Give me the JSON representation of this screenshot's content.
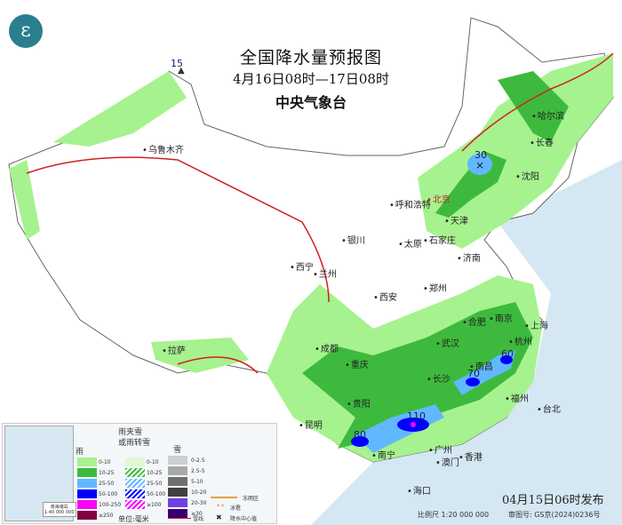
{
  "header": {
    "title": "全国降水量预报图",
    "period": "4月16日08时—17日08时",
    "issuer": "中央气象台"
  },
  "logo": {
    "icon": "cma-logo"
  },
  "cities": [
    "乌鲁木齐",
    "哈尔滨",
    "长春",
    "沈阳",
    "北京",
    "天津",
    "呼和浩特",
    "石家庄",
    "太原",
    "济南",
    "银川",
    "兰州",
    "西宁",
    "郑州",
    "西安",
    "南京",
    "合肥",
    "上海",
    "杭州",
    "武汉",
    "南昌",
    "长沙",
    "福州",
    "台北",
    "成都",
    "重庆",
    "贵阳",
    "昆明",
    "拉萨",
    "南宁",
    "广州",
    "香港",
    "澳门",
    "海口"
  ],
  "precip_centers": [
    "15",
    "30",
    "110",
    "80",
    "70",
    "60"
  ],
  "legend": {
    "rain": {
      "title": "雨",
      "items": [
        "0-10",
        "10-25",
        "25-50",
        "50-100",
        "100-250",
        "≥250"
      ],
      "colors": [
        "#a6f28f",
        "#3dba3d",
        "#61b8ff",
        "#0000ff",
        "#fa00fa",
        "#800040"
      ]
    },
    "mixed": {
      "title": "雨夹雪\n或雨转雪",
      "items": [
        "0-10",
        "10-25",
        "25-50",
        "50-100",
        "≥100"
      ]
    },
    "snow": {
      "title": "雪",
      "items": [
        "0-2.5",
        "2.5-5",
        "5-10",
        "10-20",
        "20-30",
        "≥30"
      ],
      "colors": [
        "#cfcfcf",
        "#a8a8a8",
        "#707070",
        "#404040",
        "#7040e0",
        "#3a0070"
      ]
    },
    "unit": "单位:毫米",
    "symbols": [
      "冻雨区",
      "冰雹",
      "雪线",
      "降水中心值"
    ],
    "inset_scale": "南海诸岛\n1:40 000 000"
  },
  "footer": {
    "issued": "04月15日06时发布",
    "scale": "比例尺 1:20 000 000",
    "review_no": "审图号: GS京(2024)0236号"
  }
}
